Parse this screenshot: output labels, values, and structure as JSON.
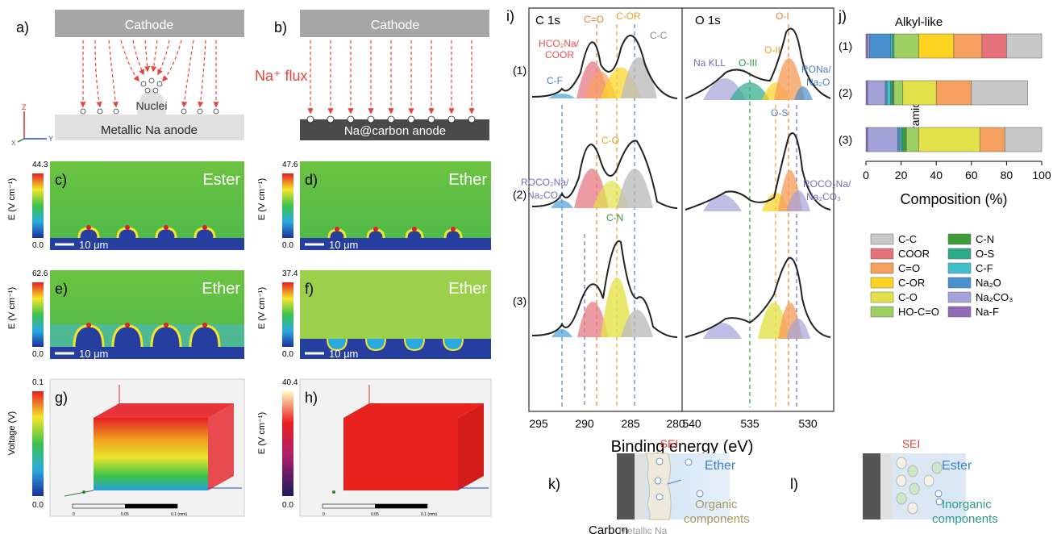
{
  "panel_labels": {
    "a": "a)",
    "b": "b)",
    "c": "c)",
    "d": "d)",
    "e": "e)",
    "f": "f)",
    "g": "g)",
    "h": "h)",
    "i": "i)",
    "j": "j)",
    "k": "k)",
    "l": "l)"
  },
  "top": {
    "cathode": "Cathode",
    "na_flux": "Na⁺ flux",
    "nuclei": "Nuclei",
    "metallic_anode": "Metallic Na anode",
    "carbon_anode": "Na@carbon anode",
    "axis_z": "Z",
    "axis_y": "Y",
    "axis_x": "X"
  },
  "field_panels": [
    {
      "id": "c",
      "solvent": "Ester",
      "cb_max": "44.3",
      "cb_min": "0.0",
      "ylabel": "E (V cm⁻¹)",
      "scale": "10 μm"
    },
    {
      "id": "d",
      "solvent": "Ether",
      "cb_max": "47.6",
      "cb_min": "0.0",
      "ylabel": "E (V cm⁻¹)",
      "scale": "10 μm"
    },
    {
      "id": "e",
      "solvent": "Ether",
      "cb_max": "62.6",
      "cb_min": "0.0",
      "ylabel": "E (V cm⁻¹)",
      "scale": "10 μm"
    },
    {
      "id": "f",
      "solvent": "Ether",
      "cb_max": "37.4",
      "cb_min": "0.0",
      "ylabel": "E (V cm⁻¹)",
      "scale": "10 μm"
    }
  ],
  "box_panels": [
    {
      "id": "g",
      "cb_max": "0.1",
      "cb_min": "0.0",
      "ylabel": "Voltage (V)",
      "ruler": [
        "0",
        "0.05",
        "0.1 (mm)"
      ]
    },
    {
      "id": "h",
      "cb_max": "40.4",
      "cb_min": "0.0",
      "ylabel": "E (V cm⁻¹)",
      "ruler": [
        "0",
        "0.05",
        "0.1 (mm)"
      ]
    }
  ],
  "xps": {
    "c1s_title": "C 1s",
    "o1s_title": "O 1s",
    "row_labels": [
      "(1)",
      "(2)",
      "(3)"
    ],
    "c1s_ticks": [
      "295",
      "290",
      "285",
      "280"
    ],
    "o1s_ticks": [
      "540",
      "535",
      "530"
    ],
    "xlabel": "Binding energy (eV)",
    "c1s_peak_labels": {
      "c_eq_o": "C=O",
      "c_or": "C-OR",
      "c_c": "C-C",
      "hco2na": "HCO₂Na/",
      "coor": "COOR",
      "c_f": "C-F",
      "roco2na": "ROCO₂Na/",
      "na2co3": "Na₂CO₃",
      "c_o": "C-O",
      "c_n": "C-N"
    },
    "o1s_peak_labels": {
      "o_i": "O-I",
      "o_ii": "O-II",
      "o_iii": "O-III",
      "na_kll": "Na KLL",
      "rona": "RONa/",
      "na2o": "Na₂O",
      "o_s": "O-S",
      "roco2na": "ROCO₂Na/",
      "na2co3": "Na₂CO₃"
    }
  },
  "chart_data": {
    "type": "bar",
    "stacked": true,
    "orientation": "horizontal",
    "categories": [
      "(1)",
      "(2)",
      "(3)"
    ],
    "xlabel": "Composition (%)",
    "xlim": [
      0,
      100
    ],
    "xticks": [
      "0",
      "20",
      "40",
      "60",
      "80",
      "100"
    ],
    "annotations": [
      "Alkyl-like",
      "Ceramic-like"
    ],
    "series": [
      {
        "name": "Na-F",
        "color": "#8e6bb4",
        "values": [
          1,
          1,
          1
        ]
      },
      {
        "name": "Na₂CO₃",
        "color": "#a3a3d9",
        "values": [
          1,
          10,
          17
        ]
      },
      {
        "name": "Na₂O",
        "color": "#4a8fce",
        "values": [
          12,
          1,
          1
        ]
      },
      {
        "name": "C-F",
        "color": "#3ec1c8",
        "values": [
          1,
          2,
          1
        ]
      },
      {
        "name": "O-S",
        "color": "#2daa8a",
        "values": [
          1,
          1,
          1
        ]
      },
      {
        "name": "C-N",
        "color": "#3f9b3a",
        "values": [
          0,
          1,
          2
        ]
      },
      {
        "name": "HO-C=O",
        "color": "#9ecf62",
        "values": [
          14,
          5,
          7
        ]
      },
      {
        "name": "C-O",
        "color": "#e3e14a",
        "values": [
          0,
          19,
          35
        ]
      },
      {
        "name": "C-OR",
        "color": "#fbd320",
        "values": [
          20,
          0,
          0
        ]
      },
      {
        "name": "C=O",
        "color": "#f5a05f",
        "values": [
          16,
          20,
          14
        ]
      },
      {
        "name": "COOR",
        "color": "#e5717a",
        "values": [
          14,
          0,
          0
        ]
      },
      {
        "name": "C-C",
        "color": "#c8c8c8",
        "values": [
          20,
          32,
          21
        ]
      }
    ],
    "legend_left": [
      "C-C",
      "COOR",
      "C=O",
      "C-OR",
      "C-O",
      "HO-C=O"
    ],
    "legend_right": [
      "C-N",
      "O-S",
      "C-F",
      "Na₂O",
      "Na₂CO₃",
      "Na-F"
    ]
  },
  "sei": {
    "k_sei": "SEI",
    "k_solvent": "Ether",
    "k_carbon": "Carbon",
    "k_metallic": "Metallic Na",
    "k_components1": "Organic",
    "k_components2": "components",
    "l_sei": "SEI",
    "l_solvent": "Ester",
    "l_components1": "Inorganic",
    "l_components2": "components"
  }
}
